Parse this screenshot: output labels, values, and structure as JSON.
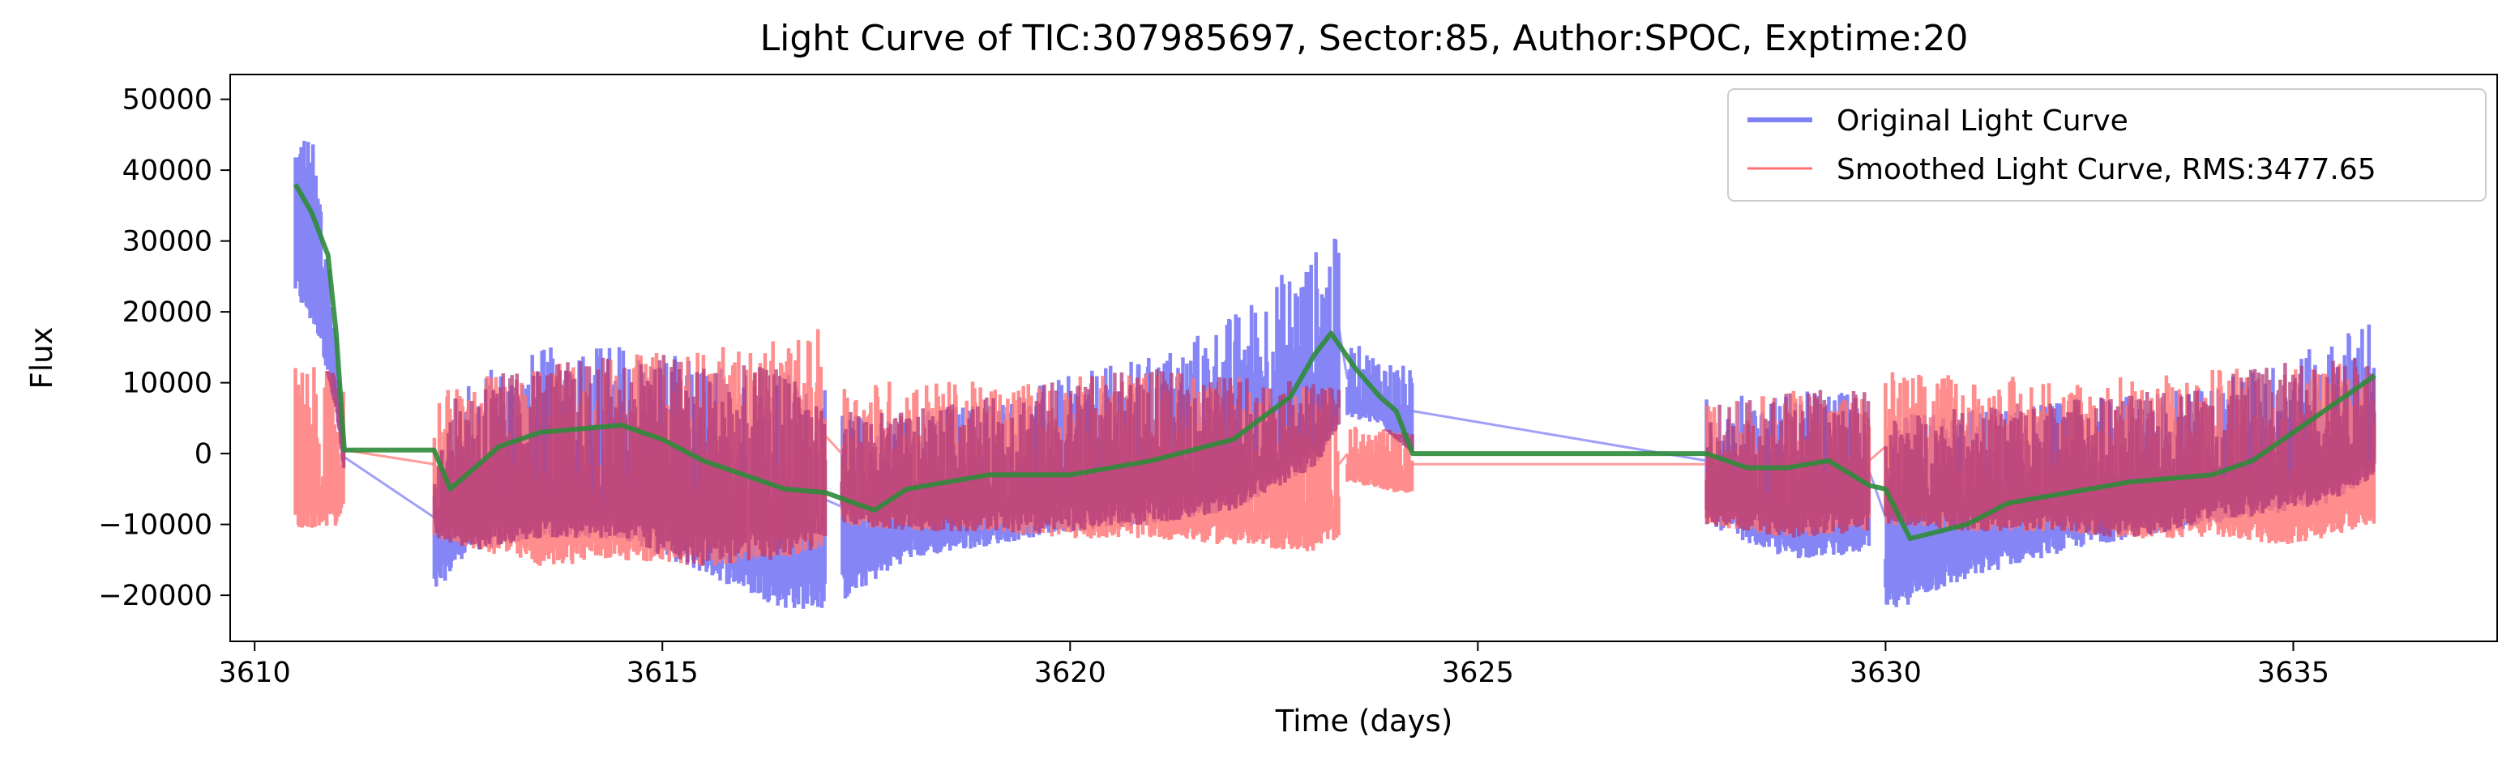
{
  "chart_data": {
    "type": "line",
    "title": "Light Curve of TIC:307985697, Sector:85, Author:SPOC, Exptime:20",
    "xlabel": "Time (days)",
    "ylabel": "Flux",
    "xlim": [
      3609.7,
      3637.5
    ],
    "ylim": [
      -26500,
      53500
    ],
    "x_ticks": [
      3610,
      3615,
      3620,
      3625,
      3630,
      3635
    ],
    "x_tick_labels": [
      "3610",
      "3615",
      "3620",
      "3625",
      "3630",
      "3635"
    ],
    "y_ticks": [
      -20000,
      -10000,
      0,
      10000,
      20000,
      30000,
      40000,
      50000
    ],
    "y_tick_labels": [
      "−20000",
      "−10000",
      "0",
      "10000",
      "20000",
      "30000",
      "40000",
      "50000"
    ],
    "grid": false,
    "legend_position": "top-right",
    "segments": [
      {
        "x_start": 3610.5,
        "x_end": 3611.1
      },
      {
        "x_start": 3612.2,
        "x_end": 3617.0
      },
      {
        "x_start": 3617.2,
        "x_end": 3623.3
      },
      {
        "x_start": 3623.4,
        "x_end": 3624.2
      },
      {
        "x_start": 3627.8,
        "x_end": 3629.8
      },
      {
        "x_start": 3630.0,
        "x_end": 3636.0
      }
    ],
    "series": [
      {
        "name": "Original Light Curve",
        "color": "#7878f5",
        "style": "noisy band",
        "x": [
          3610.5,
          3610.8,
          3611.0,
          3611.1,
          3612.2,
          3612.6,
          3613.5,
          3614.5,
          3615.5,
          3616.5,
          3617.0,
          3617.2,
          3618.0,
          3619.0,
          3620.0,
          3621.0,
          3621.5,
          3622.0,
          3622.5,
          3623.0,
          3623.3,
          3623.4,
          3623.8,
          3624.2,
          3627.8,
          3628.8,
          3629.8,
          3630.0,
          3630.5,
          3631.5,
          3632.5,
          3633.5,
          3634.5,
          3635.5,
          3636.0
        ],
        "upper": [
          50000,
          42000,
          18000,
          2000,
          2000,
          11000,
          15000,
          16000,
          13000,
          12000,
          9000,
          6000,
          6000,
          8000,
          11000,
          14000,
          17000,
          20000,
          25000,
          29000,
          31000,
          16000,
          14000,
          12000,
          8000,
          9000,
          9000,
          5000,
          6000,
          7000,
          8000,
          9000,
          12000,
          16000,
          21000
        ],
        "lower": [
          22000,
          16000,
          6000,
          -3000,
          -20000,
          -14000,
          -12000,
          -12000,
          -17000,
          -22000,
          -22000,
          -21000,
          -15000,
          -13000,
          -11000,
          -10000,
          -9000,
          -8000,
          -5000,
          -2000,
          4000,
          5000,
          4000,
          0,
          -10000,
          -15000,
          -14000,
          -23000,
          -20000,
          -16000,
          -13000,
          -11000,
          -9000,
          -7000,
          -3000
        ]
      },
      {
        "name": "Smoothed Light Curve, RMS:3477.65",
        "color": "#ff7070",
        "style": "noisy band",
        "x": [
          3610.5,
          3611.1,
          3612.2,
          3613.5,
          3614.5,
          3615.5,
          3616.5,
          3617.0,
          3617.2,
          3618.0,
          3619.0,
          3620.0,
          3621.0,
          3622.0,
          3623.0,
          3623.3,
          3623.4,
          3624.2,
          3627.8,
          3628.8,
          3629.8,
          3630.0,
          3631.0,
          3632.0,
          3633.0,
          3634.0,
          3635.0,
          3636.0
        ],
        "upper": [
          13000,
          11000,
          9000,
          13000,
          14000,
          15000,
          16000,
          18000,
          10000,
          11000,
          10000,
          11000,
          12000,
          11000,
          10000,
          9000,
          4000,
          3000,
          7000,
          9000,
          9000,
          12000,
          11000,
          11000,
          11000,
          12000,
          13000,
          14000
        ],
        "lower": [
          -11000,
          -10000,
          -12000,
          -16000,
          -15000,
          -16000,
          -15000,
          -13000,
          -10000,
          -11000,
          -11000,
          -12000,
          -12000,
          -13000,
          -14000,
          -12000,
          -4000,
          -6000,
          -10000,
          -12000,
          -11000,
          -10000,
          -11000,
          -11000,
          -12000,
          -12000,
          -13000,
          -10000
        ]
      },
      {
        "name": "",
        "color": "#2e8b3a",
        "style": "line",
        "x": [
          3610.5,
          3610.7,
          3610.9,
          3611.0,
          3611.1,
          3612.2,
          3612.4,
          3613.0,
          3613.5,
          3614.0,
          3614.5,
          3615.0,
          3615.5,
          3616.0,
          3616.5,
          3617.0,
          3617.6,
          3618.0,
          3619.0,
          3620.0,
          3621.0,
          3622.0,
          3622.7,
          3623.0,
          3623.2,
          3623.5,
          3623.8,
          3624.0,
          3624.2,
          3627.8,
          3628.3,
          3628.8,
          3629.3,
          3629.8,
          3630.0,
          3630.3,
          3631.0,
          3631.5,
          3632.0,
          3632.5,
          3633.0,
          3634.0,
          3634.5,
          3635.0,
          3635.5,
          3636.0
        ],
        "y": [
          38000,
          34000,
          28000,
          17000,
          500,
          500,
          -5000,
          1000,
          3000,
          3500,
          4000,
          2000,
          -1000,
          -3000,
          -5000,
          -5500,
          -8000,
          -5000,
          -3000,
          -3000,
          -1000,
          2000,
          8000,
          14000,
          17000,
          12000,
          8000,
          6000,
          0,
          0,
          -2000,
          -2000,
          -1000,
          -4500,
          -5000,
          -12000,
          -10000,
          -7000,
          -6000,
          -5000,
          -4000,
          -3000,
          -1000,
          3000,
          7000,
          11000
        ]
      }
    ]
  },
  "legend": {
    "entries": [
      {
        "label": "Original Light Curve",
        "color": "#7878f5"
      },
      {
        "label": "Smoothed Light Curve, RMS:3477.65",
        "color": "#ff7070"
      }
    ]
  }
}
